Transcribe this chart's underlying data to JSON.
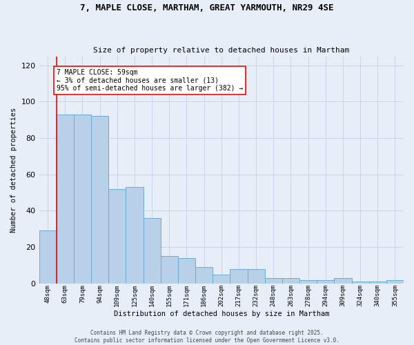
{
  "title1": "7, MAPLE CLOSE, MARTHAM, GREAT YARMOUTH, NR29 4SE",
  "title2": "Size of property relative to detached houses in Martham",
  "xlabel": "Distribution of detached houses by size in Martham",
  "ylabel": "Number of detached properties",
  "categories": [
    "48sqm",
    "63sqm",
    "79sqm",
    "94sqm",
    "109sqm",
    "125sqm",
    "140sqm",
    "155sqm",
    "171sqm",
    "186sqm",
    "202sqm",
    "217sqm",
    "232sqm",
    "248sqm",
    "263sqm",
    "278sqm",
    "294sqm",
    "309sqm",
    "324sqm",
    "340sqm",
    "355sqm"
  ],
  "values": [
    29,
    93,
    93,
    92,
    52,
    53,
    36,
    15,
    14,
    9,
    5,
    8,
    8,
    3,
    3,
    2,
    2,
    3,
    1,
    1,
    2
  ],
  "bar_color": "#b8d0e8",
  "bar_edge_color": "#6aaad4",
  "grid_color": "#c8d4e8",
  "background_color": "#e8eef8",
  "annotation_text": "7 MAPLE CLOSE: 59sqm\n← 3% of detached houses are smaller (13)\n95% of semi-detached houses are larger (382) →",
  "annotation_box_color": "white",
  "annotation_box_edge_color": "red",
  "vline_x": 0.5,
  "vline_color": "red",
  "ylim": [
    0,
    125
  ],
  "yticks": [
    0,
    20,
    40,
    60,
    80,
    100,
    120
  ],
  "footer_line1": "Contains HM Land Registry data © Crown copyright and database right 2025.",
  "footer_line2": "Contains public sector information licensed under the Open Government Licence v3.0."
}
